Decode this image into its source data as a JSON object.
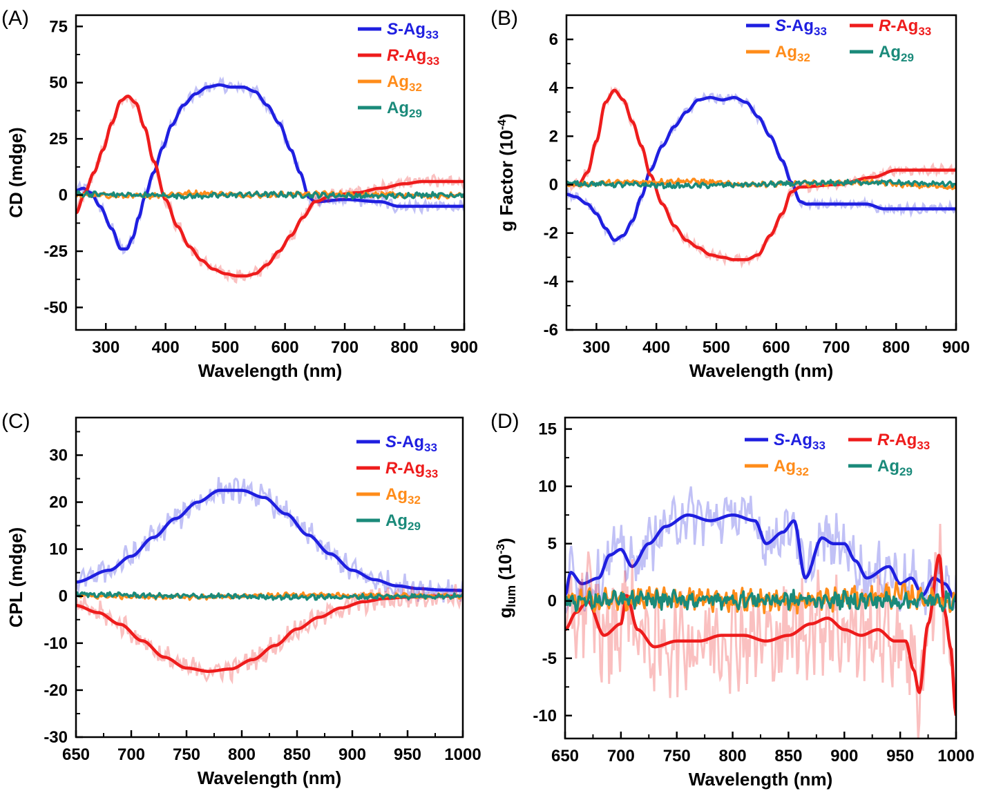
{
  "colors": {
    "S-Ag33": "#1f1fe0",
    "R-Ag33": "#ee1c1c",
    "Ag32": "#ff8c1a",
    "Ag29": "#1a8a7a"
  },
  "chart_data": [
    {
      "panel": "(A)",
      "type": "line",
      "xlabel": "Wavelength (nm)",
      "ylabel": "CD (mdge)",
      "ylabel_sup": "",
      "ylabel_sub": "",
      "xlim": [
        250,
        900
      ],
      "ylim": [
        -60,
        80
      ],
      "xticks": [
        300,
        400,
        500,
        600,
        700,
        800,
        900
      ],
      "yticks": [
        -50,
        -25,
        0,
        25,
        50,
        75
      ],
      "legend_layout": "column",
      "legend": [
        {
          "key": "S-Ag33",
          "italic": "S",
          "text": "-Ag",
          "sub": "33"
        },
        {
          "key": "R-Ag33",
          "italic": "R",
          "text": "-Ag",
          "sub": "33"
        },
        {
          "key": "Ag32",
          "italic": "",
          "text": "Ag",
          "sub": "32"
        },
        {
          "key": "Ag29",
          "italic": "",
          "text": "Ag",
          "sub": "29"
        }
      ],
      "noise": {
        "S-Ag33": 2.2,
        "R-Ag33": 2.2,
        "Ag32": 0.9,
        "Ag29": 0.9
      },
      "series": [
        {
          "name": "S-Ag33",
          "x": [
            250,
            262,
            275,
            290,
            310,
            325,
            335,
            345,
            355,
            365,
            380,
            395,
            410,
            430,
            450,
            470,
            490,
            510,
            530,
            550,
            570,
            590,
            610,
            625,
            640,
            650,
            700,
            760,
            790,
            850,
            900
          ],
          "y": [
            2,
            3,
            1,
            -5,
            -15,
            -24,
            -24,
            -19,
            -10,
            -1,
            10,
            21,
            31,
            40,
            45,
            48,
            49,
            48,
            48,
            46,
            40,
            32,
            20,
            10,
            -1,
            -3,
            -2,
            -3,
            -5,
            -5,
            -5
          ]
        },
        {
          "name": "R-Ag33",
          "x": [
            250,
            265,
            280,
            295,
            310,
            325,
            337,
            350,
            365,
            380,
            400,
            420,
            440,
            460,
            480,
            500,
            520,
            535,
            550,
            570,
            590,
            610,
            630,
            650,
            680,
            720,
            760,
            800,
            830,
            900
          ],
          "y": [
            -8,
            1,
            10,
            20,
            32,
            42,
            44,
            41,
            30,
            15,
            -2,
            -14,
            -23,
            -29,
            -33,
            -35,
            -36,
            -36,
            -35,
            -31,
            -25,
            -18,
            -10,
            -3,
            0,
            1,
            3,
            5,
            6,
            6
          ]
        },
        {
          "name": "Ag32",
          "x": [
            250,
            350,
            450,
            550,
            650,
            750,
            850,
            900
          ],
          "y": [
            0,
            -0.5,
            0.8,
            0,
            0.5,
            0.3,
            -0.5,
            0
          ]
        },
        {
          "name": "Ag29",
          "x": [
            250,
            350,
            450,
            550,
            650,
            750,
            850,
            900
          ],
          "y": [
            0.5,
            0,
            -0.5,
            0.3,
            0,
            -0.5,
            0.2,
            0
          ]
        }
      ]
    },
    {
      "panel": "(B)",
      "type": "line",
      "xlabel": "Wavelength (nm)",
      "ylabel": "g Factor (10",
      "ylabel_sup": "-4",
      "ylabel_sub": "",
      "xlim": [
        250,
        900
      ],
      "ylim": [
        -6,
        7
      ],
      "xticks": [
        300,
        400,
        500,
        600,
        700,
        800,
        900
      ],
      "yticks": [
        -6,
        -4,
        -2,
        0,
        2,
        4,
        6
      ],
      "legend_layout": "grid",
      "legend": [
        {
          "key": "S-Ag33",
          "italic": "S",
          "text": "-Ag",
          "sub": "33"
        },
        {
          "key": "R-Ag33",
          "italic": "R",
          "text": "-Ag",
          "sub": "33"
        },
        {
          "key": "Ag32",
          "italic": "",
          "text": "Ag",
          "sub": "32"
        },
        {
          "key": "Ag29",
          "italic": "",
          "text": "Ag",
          "sub": "29"
        }
      ],
      "noise": {
        "S-Ag33": 0.15,
        "R-Ag33": 0.15,
        "Ag32": 0.08,
        "Ag29": 0.08
      },
      "series": [
        {
          "name": "S-Ag33",
          "x": [
            250,
            265,
            285,
            300,
            315,
            330,
            345,
            360,
            375,
            390,
            410,
            430,
            450,
            470,
            490,
            510,
            530,
            550,
            570,
            590,
            610,
            625,
            640,
            650,
            700,
            750,
            780,
            800,
            900
          ],
          "y": [
            -0.4,
            -0.5,
            -0.8,
            -1.2,
            -1.8,
            -2.3,
            -2.1,
            -1.5,
            -0.5,
            0.6,
            1.6,
            2.4,
            3.0,
            3.5,
            3.6,
            3.5,
            3.6,
            3.4,
            2.8,
            2.0,
            1.0,
            0.1,
            -0.7,
            -0.8,
            -0.8,
            -0.8,
            -1.0,
            -1.0,
            -1.0
          ]
        },
        {
          "name": "R-Ag33",
          "x": [
            250,
            270,
            285,
            300,
            315,
            330,
            345,
            360,
            375,
            390,
            410,
            430,
            450,
            470,
            490,
            510,
            530,
            550,
            570,
            590,
            610,
            625,
            640,
            700,
            760,
            800,
            900
          ],
          "y": [
            0,
            0,
            0.5,
            1.8,
            3.4,
            3.9,
            3.5,
            2.6,
            1.6,
            0.4,
            -0.8,
            -1.7,
            -2.3,
            -2.6,
            -2.9,
            -3.0,
            -3.1,
            -3.1,
            -2.9,
            -2.1,
            -1.2,
            -0.3,
            -0.1,
            0,
            0.3,
            0.6,
            0.6
          ]
        },
        {
          "name": "Ag32",
          "x": [
            250,
            350,
            450,
            550,
            650,
            750,
            850,
            900
          ],
          "y": [
            0,
            0.1,
            0.15,
            0,
            0.05,
            0.1,
            -0.05,
            -0.1
          ]
        },
        {
          "name": "Ag29",
          "x": [
            250,
            350,
            450,
            550,
            650,
            750,
            850,
            900
          ],
          "y": [
            0.05,
            0,
            -0.05,
            0,
            0.05,
            0.1,
            0.05,
            0
          ]
        }
      ]
    },
    {
      "panel": "(C)",
      "type": "line",
      "xlabel": "Wavelength (nm)",
      "ylabel": "CPL (mdge)",
      "ylabel_sup": "",
      "ylabel_sub": "",
      "xlim": [
        650,
        1000
      ],
      "ylim": [
        -30,
        38
      ],
      "xticks": [
        650,
        700,
        750,
        800,
        850,
        900,
        950,
        1000
      ],
      "yticks": [
        -30,
        -20,
        -10,
        0,
        10,
        20,
        30
      ],
      "legend_layout": "column",
      "legend": [
        {
          "key": "S-Ag33",
          "italic": "S",
          "text": "-Ag",
          "sub": "33"
        },
        {
          "key": "R-Ag33",
          "italic": "R",
          "text": "-Ag",
          "sub": "33"
        },
        {
          "key": "Ag32",
          "italic": "",
          "text": "Ag",
          "sub": "32"
        },
        {
          "key": "Ag29",
          "italic": "",
          "text": "Ag",
          "sub": "29"
        }
      ],
      "noise": {
        "S-Ag33": 2.0,
        "R-Ag33": 1.8,
        "Ag32": 0.4,
        "Ag29": 0.4
      },
      "series": [
        {
          "name": "S-Ag33",
          "x": [
            650,
            680,
            700,
            720,
            740,
            760,
            780,
            800,
            820,
            840,
            860,
            880,
            900,
            920,
            940,
            960,
            980,
            1000
          ],
          "y": [
            3,
            5.5,
            8.5,
            12.5,
            16.5,
            20,
            22.5,
            22.5,
            21,
            17.5,
            13,
            9,
            5.5,
            3.5,
            2.2,
            1.6,
            1.3,
            1.2
          ]
        },
        {
          "name": "R-Ag33",
          "x": [
            650,
            670,
            690,
            710,
            730,
            750,
            770,
            790,
            810,
            830,
            850,
            870,
            890,
            910,
            930,
            950,
            970,
            1000
          ],
          "y": [
            -2,
            -3.5,
            -6,
            -9.5,
            -13,
            -15.3,
            -16,
            -15.5,
            -13.5,
            -10.5,
            -7,
            -4.5,
            -2.5,
            -1.2,
            -0.5,
            -0.2,
            0,
            0
          ]
        },
        {
          "name": "Ag32",
          "x": [
            650,
            750,
            850,
            1000
          ],
          "y": [
            0,
            -0.2,
            0.2,
            0
          ]
        },
        {
          "name": "Ag29",
          "x": [
            650,
            750,
            850,
            1000
          ],
          "y": [
            0.4,
            0,
            -0.2,
            0
          ]
        }
      ]
    },
    {
      "panel": "(D)",
      "type": "line",
      "xlabel": "Wavelength (nm)",
      "ylabel": "g",
      "ylabel_sup": "",
      "ylabel_sub": "lum",
      "ylabel_after": " (10",
      "ylabel_sup2": "-3",
      "xlim": [
        650,
        1000
      ],
      "ylim": [
        -12,
        16
      ],
      "xticks": [
        650,
        700,
        750,
        800,
        850,
        900,
        950,
        1000
      ],
      "yticks": [
        -10,
        -5,
        0,
        5,
        10,
        15
      ],
      "legend_layout": "grid",
      "legend": [
        {
          "key": "S-Ag33",
          "italic": "S",
          "text": "-Ag",
          "sub": "33"
        },
        {
          "key": "R-Ag33",
          "italic": "R",
          "text": "-Ag",
          "sub": "33"
        },
        {
          "key": "Ag32",
          "italic": "",
          "text": "Ag",
          "sub": "32"
        },
        {
          "key": "Ag29",
          "italic": "",
          "text": "Ag",
          "sub": "29"
        }
      ],
      "noise": {
        "S-Ag33": 1.8,
        "R-Ag33": 3.5,
        "Ag32": 0.8,
        "Ag29": 0.6
      },
      "series": [
        {
          "name": "S-Ag33",
          "x": [
            650,
            655,
            665,
            680,
            690,
            700,
            710,
            725,
            740,
            760,
            780,
            800,
            820,
            830,
            845,
            855,
            865,
            880,
            890,
            900,
            910,
            920,
            940,
            950,
            960,
            970,
            980,
            990,
            1000
          ],
          "y": [
            0.5,
            2.5,
            1.5,
            2,
            4,
            4.5,
            3,
            5,
            6.5,
            7.5,
            7,
            7.5,
            7,
            5,
            6,
            7,
            2,
            5.5,
            5,
            5,
            3.5,
            2,
            3,
            1.5,
            2,
            0.5,
            2,
            1.5,
            0
          ]
        },
        {
          "name": "R-Ag33",
          "x": [
            650,
            660,
            670,
            685,
            700,
            705,
            715,
            730,
            750,
            770,
            790,
            810,
            830,
            850,
            870,
            885,
            900,
            915,
            930,
            945,
            955,
            962,
            967,
            975,
            985,
            990,
            995,
            1000
          ],
          "y": [
            -2.5,
            -1,
            0,
            -3,
            -2,
            0.5,
            -2.5,
            -4,
            -3.5,
            -3.5,
            -3,
            -3,
            -3.5,
            -3,
            -2,
            -1.5,
            -2.5,
            -3,
            -2.5,
            -3.5,
            -3.5,
            -6,
            -8,
            -2,
            4,
            -1,
            -4,
            -10
          ]
        },
        {
          "name": "Ag32",
          "x": [
            650,
            750,
            850,
            950,
            1000
          ],
          "y": [
            0,
            0.2,
            0,
            0.5,
            0
          ]
        },
        {
          "name": "Ag29",
          "x": [
            650,
            750,
            850,
            950,
            1000
          ],
          "y": [
            0,
            0.1,
            0.1,
            0,
            0
          ]
        }
      ]
    }
  ]
}
